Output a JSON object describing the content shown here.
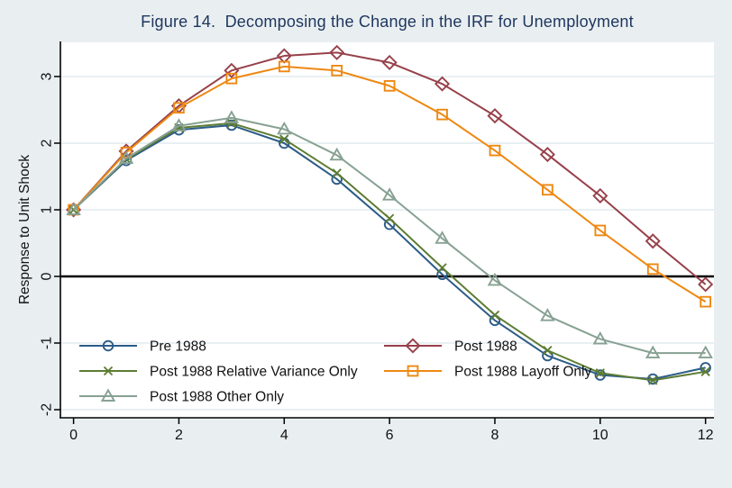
{
  "chart_data": {
    "type": "line",
    "title": "Figure 14.  Decomposing the Change in the IRF for Unemployment",
    "xlabel": "",
    "ylabel": "Response to Unit Shock",
    "x": [
      0,
      1,
      2,
      3,
      4,
      5,
      6,
      7,
      8,
      9,
      10,
      11,
      12
    ],
    "xticks": [
      0,
      2,
      4,
      6,
      8,
      10,
      12
    ],
    "yticks": [
      -2,
      -1,
      0,
      1,
      2,
      3
    ],
    "xlim": [
      -0.25,
      12.16
    ],
    "ylim": [
      -2.12,
      3.51
    ],
    "grid": "horizontal",
    "zero_reference_line": 0,
    "legend_position": "inside-bottom-left-two-columns",
    "series": [
      {
        "name": "Pre 1988",
        "color": "#2c5c88",
        "marker": "circle",
        "values": [
          1.0,
          1.74,
          2.2,
          2.27,
          2.0,
          1.46,
          0.78,
          0.03,
          -0.66,
          -1.19,
          -1.48,
          -1.54,
          -1.37
        ]
      },
      {
        "name": "Post 1988",
        "color": "#97404a",
        "marker": "diamond",
        "values": [
          1.0,
          1.88,
          2.56,
          3.09,
          3.31,
          3.36,
          3.21,
          2.89,
          2.41,
          1.83,
          1.21,
          0.53,
          -0.12
        ]
      },
      {
        "name": "Post 1988 Relative Variance Only",
        "color": "#5d7d33",
        "marker": "x",
        "values": [
          1.0,
          1.76,
          2.23,
          2.3,
          2.06,
          1.55,
          0.87,
          0.13,
          -0.58,
          -1.11,
          -1.45,
          -1.56,
          -1.43
        ]
      },
      {
        "name": "Post 1988 Layoff Only",
        "color": "#ee8812",
        "marker": "square",
        "values": [
          1.0,
          1.86,
          2.53,
          2.97,
          3.15,
          3.09,
          2.86,
          2.43,
          1.89,
          1.3,
          0.69,
          0.11,
          -0.38
        ]
      },
      {
        "name": "Post 1988 Other Only",
        "color": "#87a193",
        "marker": "triangle",
        "values": [
          1.0,
          1.77,
          2.26,
          2.38,
          2.21,
          1.82,
          1.22,
          0.57,
          -0.06,
          -0.59,
          -0.94,
          -1.15,
          -1.15
        ]
      }
    ],
    "colors": {
      "background": "#e9eff1",
      "plot_background": "#ffffff",
      "gridline": "#e2ecef",
      "axis": "#000000",
      "title": "#1e355e",
      "tick_label": "#111111"
    }
  }
}
